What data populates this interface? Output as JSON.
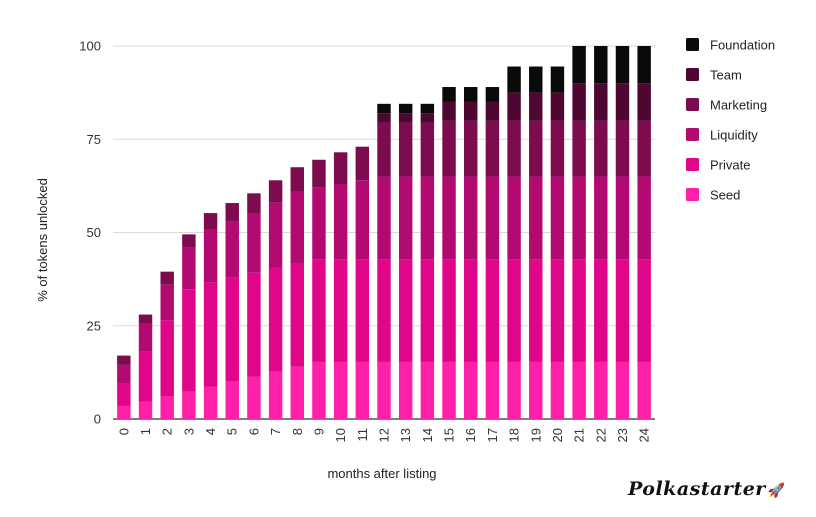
{
  "brand": {
    "name": "Polkastarter",
    "icon": "rocket-icon",
    "icon_color": "#e6007a"
  },
  "chart_data": {
    "type": "bar",
    "stacked": true,
    "title": "",
    "xlabel": "months after listing",
    "ylabel": "% of tokens unlocked",
    "ylim": [
      0,
      100
    ],
    "yticks": [
      0,
      25,
      50,
      75,
      100
    ],
    "grid": true,
    "legend_position": "right",
    "categories": [
      "0",
      "1",
      "2",
      "3",
      "4",
      "5",
      "6",
      "7",
      "8",
      "9",
      "10",
      "11",
      "12",
      "13",
      "14",
      "15",
      "16",
      "17",
      "18",
      "19",
      "20",
      "21",
      "22",
      "23",
      "24"
    ],
    "series": [
      {
        "name": "Seed",
        "color": "#ff1fa8",
        "values": [
          3.5,
          4.7,
          6,
          7.3,
          8.7,
          10,
          11.3,
          12.7,
          14,
          15.3,
          15.3,
          15.3,
          15.3,
          15.3,
          15.3,
          15.3,
          15.3,
          15.3,
          15.3,
          15.3,
          15.3,
          15.3,
          15.3,
          15.3,
          15.3
        ]
      },
      {
        "name": "Private",
        "color": "#e00689",
        "values": [
          6,
          13.3,
          20.5,
          27.5,
          28,
          27.9,
          27.9,
          27.8,
          27.7,
          27.5,
          27.5,
          27.5,
          27.5,
          27.5,
          27.5,
          27.5,
          27.5,
          27.5,
          27.5,
          27.5,
          27.5,
          27.5,
          27.5,
          27.5,
          27.5
        ]
      },
      {
        "name": "Liquidity",
        "color": "#b30a72",
        "values": [
          5,
          7.5,
          9.5,
          11.2,
          14,
          15,
          15.8,
          17.5,
          19.3,
          19.2,
          20.2,
          21.2,
          22.2,
          22.2,
          22.2,
          22.2,
          22.2,
          22.2,
          22.2,
          22.2,
          22.2,
          22.2,
          22.2,
          22.2,
          22.2
        ]
      },
      {
        "name": "Marketing",
        "color": "#7d0c4f",
        "values": [
          2.5,
          2.5,
          3.5,
          3.5,
          4.5,
          5,
          5.5,
          6,
          6.5,
          7.5,
          8.5,
          9,
          14.5,
          14.5,
          14.5,
          15,
          15,
          15,
          15,
          15,
          15,
          15,
          15,
          15,
          15
        ]
      },
      {
        "name": "Team",
        "color": "#4d0731",
        "values": [
          0,
          0,
          0,
          0,
          0,
          0,
          0,
          0,
          0,
          0,
          0,
          0,
          2.5,
          2.5,
          2.5,
          5,
          5,
          5,
          7.5,
          7.5,
          7.5,
          10,
          10,
          10,
          10
        ]
      },
      {
        "name": "Foundation",
        "color": "#0a0a0a",
        "values": [
          0,
          0,
          0,
          0,
          0,
          0,
          0,
          0,
          0,
          0,
          0,
          0,
          2.5,
          2.5,
          2.5,
          4,
          4,
          4,
          7,
          7,
          7,
          10,
          10,
          10,
          10
        ]
      }
    ]
  }
}
